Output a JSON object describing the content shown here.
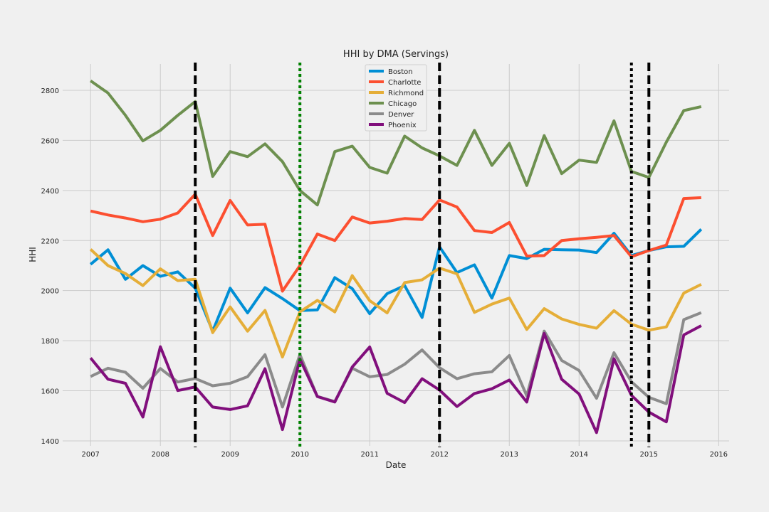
{
  "chart_data": {
    "type": "line",
    "title": "HHI by DMA (Servings)",
    "xlabel": "Date",
    "ylabel": "HHI",
    "xlim": [
      2006.6,
      2016.15
    ],
    "ylim": [
      1380,
      2905
    ],
    "xticks": [
      2007,
      2008,
      2009,
      2010,
      2011,
      2012,
      2013,
      2014,
      2015,
      2016
    ],
    "yticks": [
      1400,
      1600,
      1800,
      2000,
      2200,
      2400,
      2600,
      2800
    ],
    "grid": true,
    "legend_position": "top-center",
    "x": [
      2007,
      2007.25,
      2007.5,
      2007.75,
      2008,
      2008.25,
      2008.5,
      2008.75,
      2009,
      2009.25,
      2009.5,
      2009.75,
      2010,
      2010.25,
      2010.5,
      2010.75,
      2011,
      2011.25,
      2011.5,
      2011.75,
      2012,
      2012.25,
      2012.5,
      2012.75,
      2013,
      2013.25,
      2013.5,
      2013.75,
      2014,
      2014.25,
      2014.5,
      2014.75,
      2015,
      2015.25,
      2015.5,
      2015.75
    ],
    "series": [
      {
        "name": "Boston",
        "color": "#008fd5",
        "values": [
          2105,
          2163,
          2045,
          2100,
          2057,
          2075,
          2010,
          1838,
          2010,
          1911,
          2012,
          1968,
          1920,
          1923,
          2052,
          2008,
          1908,
          1988,
          2020,
          1893,
          2175,
          2072,
          2103,
          1970,
          2140,
          2128,
          2165,
          2163,
          2162,
          2152,
          2229,
          2140,
          2160,
          2175,
          2177,
          2245
        ]
      },
      {
        "name": "Charlotte",
        "color": "#fc4f30",
        "values": [
          2318,
          2302,
          2290,
          2275,
          2285,
          2310,
          2385,
          2220,
          2360,
          2262,
          2265,
          1998,
          2100,
          2226,
          2200,
          2294,
          2270,
          2277,
          2288,
          2284,
          2362,
          2334,
          2240,
          2232,
          2272,
          2138,
          2140,
          2200,
          2207,
          2213,
          2220,
          2135,
          2160,
          2182,
          2368,
          2371
        ]
      },
      {
        "name": "Richmond",
        "color": "#e5ae38",
        "values": [
          2165,
          2100,
          2068,
          2020,
          2087,
          2040,
          2045,
          1832,
          1935,
          1838,
          1921,
          1735,
          1915,
          1961,
          1915,
          2060,
          1960,
          1911,
          2032,
          2043,
          2090,
          2067,
          1913,
          1946,
          1970,
          1845,
          1928,
          1887,
          1865,
          1850,
          1920,
          1866,
          1842,
          1855,
          1990,
          2025
        ]
      },
      {
        "name": "Chicago",
        "color": "#6d904f",
        "values": [
          2838,
          2789,
          2700,
          2598,
          2640,
          2700,
          2755,
          2456,
          2555,
          2535,
          2586,
          2515,
          2400,
          2342,
          2555,
          2577,
          2492,
          2469,
          2617,
          2570,
          2538,
          2500,
          2640,
          2500,
          2588,
          2420,
          2619,
          2467,
          2521,
          2512,
          2678,
          2476,
          2452,
          2593,
          2719,
          2735
        ]
      },
      {
        "name": "Denver",
        "color": "#8b8b8b",
        "values": [
          1657,
          1690,
          1674,
          1610,
          1689,
          1635,
          1649,
          1620,
          1630,
          1656,
          1744,
          1535,
          1745,
          1577,
          1557,
          1690,
          1656,
          1665,
          1706,
          1763,
          1692,
          1648,
          1668,
          1676,
          1741,
          1580,
          1838,
          1721,
          1681,
          1570,
          1752,
          1636,
          1574,
          1548,
          1884,
          1912
        ]
      },
      {
        "name": "Phoenix",
        "color": "#810f7c",
        "values": [
          1731,
          1646,
          1630,
          1495,
          1776,
          1601,
          1615,
          1535,
          1525,
          1540,
          1688,
          1445,
          1727,
          1577,
          1555,
          1695,
          1775,
          1590,
          1553,
          1648,
          1603,
          1537,
          1589,
          1608,
          1643,
          1555,
          1829,
          1646,
          1587,
          1433,
          1728,
          1582,
          1515,
          1476,
          1823,
          1860
        ]
      }
    ],
    "vlines": [
      {
        "x": 2008.5,
        "color": "#000000",
        "style": "dashed"
      },
      {
        "x": 2010.0,
        "color": "#008000",
        "style": "dotted"
      },
      {
        "x": 2012.0,
        "color": "#000000",
        "style": "dashed"
      },
      {
        "x": 2014.75,
        "color": "#000000",
        "style": "dotted"
      },
      {
        "x": 2015.0,
        "color": "#000000",
        "style": "dashed"
      }
    ]
  }
}
